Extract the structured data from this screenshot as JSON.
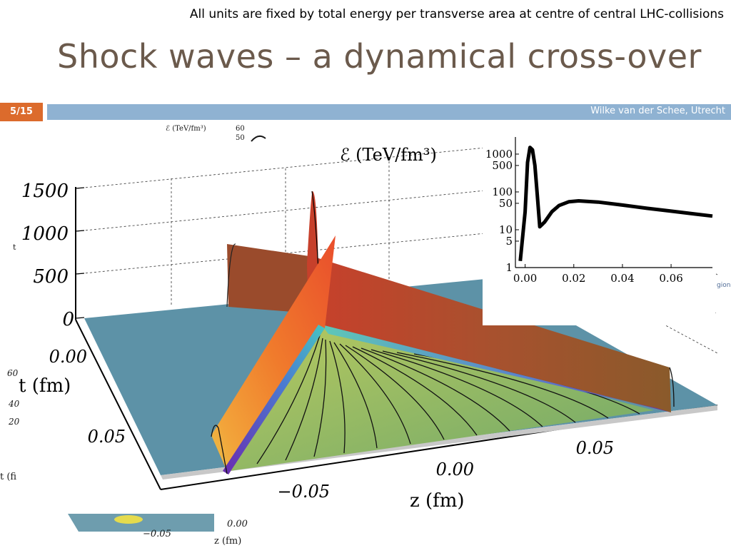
{
  "header": {
    "note": "All units are fixed by total energy per transverse area at centre of central LHC-collisions",
    "title": "Shock waves – a dynamical cross-over",
    "page": "5/15",
    "author": "Wilke van der Schee, Utrecht"
  },
  "main_plot": {
    "zlabel": "ℰ (TeV/fm³)",
    "z_ticks": [
      "1500",
      "1000",
      "500",
      "0"
    ],
    "t_label": "t (fm)",
    "t_ticks": [
      "0.00",
      "0.05"
    ],
    "x_label": "z (fm)",
    "x_ticks": [
      "−0.05",
      "0.00",
      "0.05"
    ]
  },
  "chart_data": [
    {
      "type": "line",
      "title": "",
      "xlabel": "",
      "ylabel": "",
      "y_scale": "log",
      "x_ticks": [
        "0.00",
        "0.02",
        "0.04",
        "0.06"
      ],
      "y_ticks": [
        "1000",
        "500",
        "100",
        "50",
        "10",
        "5",
        "1"
      ],
      "xlim": [
        -0.004,
        0.077
      ],
      "ylim": [
        1,
        2000
      ],
      "series": [
        {
          "x": [
            -0.002,
            0.0,
            0.001,
            0.002,
            0.003,
            0.004,
            0.005,
            0.006,
            0.008,
            0.011,
            0.014,
            0.018,
            0.022,
            0.03,
            0.04,
            0.05,
            0.06,
            0.07,
            0.077
          ],
          "y": [
            1.5,
            30,
            600,
            1500,
            1300,
            500,
            80,
            12,
            16,
            30,
            44,
            55,
            58,
            54,
            45,
            37,
            31,
            26,
            23
          ]
        }
      ]
    }
  ],
  "background_plot": {
    "partial_labels": [
      "ℰ (TeV/fm³)",
      "60",
      "50",
      "t",
      "60",
      "40",
      "20",
      "t (fi",
      "0.00",
      "−0.05",
      "z (fm)",
      "gion"
    ]
  }
}
